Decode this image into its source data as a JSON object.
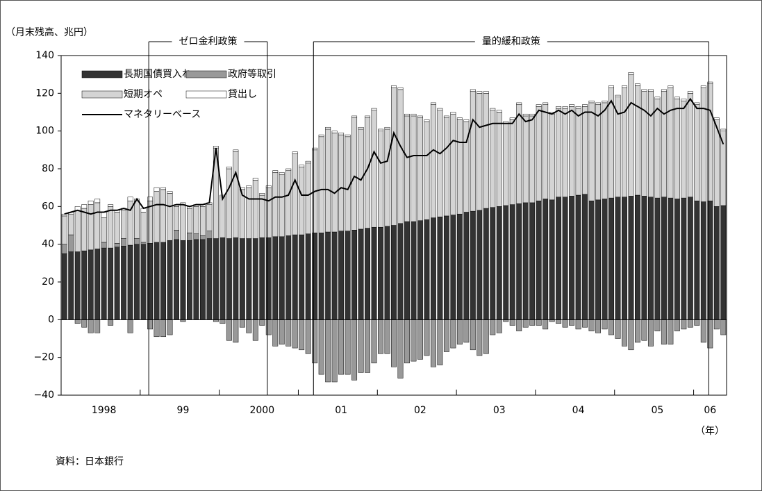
{
  "chart_data": {
    "type": "bar",
    "stacked": true,
    "y_axis_label": "（月末残高、兆円）",
    "x_axis_label": "（年）",
    "source": "資料：日本銀行",
    "annotations": [
      "ゼロ金利政策",
      "量的緩和政策"
    ],
    "categories": [
      null,
      null,
      null,
      null,
      null,
      null,
      "1998",
      null,
      null,
      null,
      null,
      null,
      null,
      null,
      null,
      null,
      null,
      null,
      "99",
      null,
      null,
      null,
      null,
      null,
      null,
      null,
      null,
      null,
      null,
      null,
      "2000",
      null,
      null,
      null,
      null,
      null,
      null,
      null,
      null,
      null,
      null,
      null,
      "01",
      null,
      null,
      null,
      null,
      null,
      null,
      null,
      null,
      null,
      null,
      null,
      "02",
      null,
      null,
      null,
      null,
      null,
      null,
      null,
      null,
      null,
      null,
      null,
      "03",
      null,
      null,
      null,
      null,
      null,
      null,
      null,
      null,
      null,
      null,
      null,
      "04",
      null,
      null,
      null,
      null,
      null,
      null,
      null,
      null,
      null,
      null,
      null,
      "05",
      null,
      null,
      null,
      null,
      null,
      null,
      null,
      "06",
      null,
      null
    ],
    "ylim": [
      -40,
      140
    ],
    "yticks": [
      {
        "value": -40,
        "label": "−40"
      },
      {
        "value": -20,
        "label": "−20"
      },
      0,
      20,
      40,
      60,
      80,
      100,
      120,
      140
    ],
    "series": [
      {
        "name": "長期国債買入れ",
        "color": "#333333",
        "values": [
          35,
          36,
          36,
          36.5,
          37,
          37.5,
          38,
          38,
          38.5,
          39,
          39.5,
          40,
          40,
          40.5,
          41,
          41,
          42,
          42.5,
          42,
          42,
          42.5,
          42.5,
          43,
          43,
          43.5,
          43,
          43.5,
          43,
          43,
          43,
          43.5,
          43.5,
          44,
          44,
          44.5,
          45,
          45,
          45.5,
          46,
          46,
          46.5,
          46.5,
          47,
          47,
          47.5,
          48,
          48.5,
          49,
          49,
          49.5,
          50,
          51,
          52,
          52,
          52.5,
          53,
          54,
          54.5,
          55,
          55.5,
          56,
          57,
          57.5,
          58,
          59,
          59.5,
          60,
          60.5,
          61,
          61.5,
          62,
          62,
          63,
          64,
          63.5,
          65,
          65,
          65.5,
          66,
          66.5,
          63,
          63.5,
          64,
          64.5,
          65,
          65,
          65.5,
          66,
          65.5,
          65,
          64.5,
          65,
          64.5,
          64,
          64.5,
          65,
          63,
          62.5,
          63,
          60,
          60.5
        ]
      },
      {
        "name": "政府等取引",
        "color": "#999999",
        "values": [
          5,
          9,
          -2,
          -4,
          -7,
          -7,
          3,
          -3,
          2,
          4,
          -7,
          3,
          1,
          -5,
          -9,
          -9,
          -8,
          5,
          -1,
          4,
          3,
          2,
          4,
          -1,
          -2,
          -11,
          -12,
          -4,
          -7,
          -11,
          -3,
          -8,
          -14,
          -13,
          -14,
          -15,
          -16,
          -18,
          -23,
          -29,
          -33,
          -33,
          -29,
          -29,
          -32,
          -28,
          -28,
          -23,
          -18,
          -18,
          -25,
          -31,
          -23,
          -22,
          -21,
          -19,
          -25,
          -24,
          -17,
          -15,
          -13,
          -12,
          -16,
          -19,
          -18,
          -8,
          -7,
          -1,
          -3,
          -6,
          -4,
          -3,
          -3,
          -5,
          -1,
          -2,
          -4,
          -3,
          -5,
          -4,
          -6,
          -7,
          -5,
          -8,
          -10,
          -14,
          -16,
          -12,
          -11,
          -14,
          -6,
          -13,
          -13,
          -6,
          -5,
          -4,
          -3,
          -12,
          -15,
          -5,
          -8
        ]
      },
      {
        "name": "短期オペ",
        "color": "#d4d4d4",
        "values": [
          15,
          11,
          22,
          22.5,
          24,
          24.5,
          13,
          22,
          16.5,
          15,
          23.5,
          20,
          16,
          22.5,
          27,
          28,
          25,
          12.5,
          19,
          13,
          14.5,
          15.5,
          14,
          48,
          21.5,
          37,
          45.5,
          26,
          27,
          31,
          22.5,
          26.5,
          34,
          33,
          34.5,
          43,
          36,
          37.5,
          44,
          51,
          54.5,
          52.5,
          51,
          50,
          59.5,
          53,
          58.5,
          62,
          51,
          51.5,
          73,
          71,
          56,
          56,
          54.5,
          52,
          60,
          56.5,
          52,
          53.5,
          50,
          48,
          63.5,
          62,
          61,
          51.5,
          50,
          43.5,
          45,
          52.5,
          46,
          46,
          50,
          50,
          45.5,
          47,
          47,
          47.5,
          46,
          46.5,
          52,
          50.5,
          51,
          58.5,
          53,
          58,
          64.5,
          58,
          55.5,
          56,
          52.5,
          56,
          58.5,
          53,
          51.5,
          55,
          51,
          60.5,
          62,
          46,
          39.5
        ]
      },
      {
        "name": "貸出し",
        "color": "#ffffff",
        "values": [
          1,
          1,
          2,
          2,
          2,
          2,
          3,
          1,
          1,
          1,
          2,
          1,
          2,
          2,
          2,
          1,
          1,
          1,
          1,
          1,
          1,
          1,
          1,
          1,
          1,
          1,
          1,
          1,
          1,
          1,
          1,
          1,
          1,
          1,
          1,
          1,
          1,
          1,
          1,
          1,
          1,
          1,
          1,
          1,
          1,
          1,
          1,
          1,
          1,
          1,
          1,
          1,
          1,
          1,
          1,
          1,
          1,
          1,
          1,
          1,
          1,
          1,
          1,
          1,
          1,
          1,
          1,
          1,
          1,
          1,
          1,
          1,
          1,
          1,
          1,
          1,
          1,
          1,
          1,
          1,
          1,
          1,
          1,
          1,
          1,
          1,
          1,
          1,
          1,
          1,
          1,
          1,
          1,
          1,
          1,
          1,
          1,
          1,
          1,
          1,
          1
        ]
      },
      {
        "name": "マネタリーベース",
        "type": "line",
        "color": "#000000",
        "values": [
          56,
          57,
          58,
          57,
          56,
          57,
          57,
          58,
          58,
          59,
          58,
          64,
          59,
          60,
          61,
          61,
          60,
          61,
          61,
          60,
          61,
          61,
          62,
          91,
          64,
          70,
          78,
          66,
          64,
          64,
          64,
          63,
          65,
          65,
          66,
          74,
          66,
          66,
          68,
          69,
          69,
          67,
          70,
          69,
          76,
          74,
          80,
          89,
          83,
          84,
          99,
          92,
          86,
          87,
          87,
          87,
          90,
          88,
          91,
          95,
          94,
          94,
          106,
          102,
          103,
          104,
          104,
          104,
          104,
          109,
          105,
          106,
          111,
          110,
          109,
          111,
          109,
          111,
          108,
          110,
          110,
          108,
          111,
          116,
          109,
          110,
          115,
          113,
          111,
          108,
          112,
          109,
          111,
          112,
          112,
          117,
          112,
          112,
          111,
          102,
          93
        ]
      }
    ]
  }
}
